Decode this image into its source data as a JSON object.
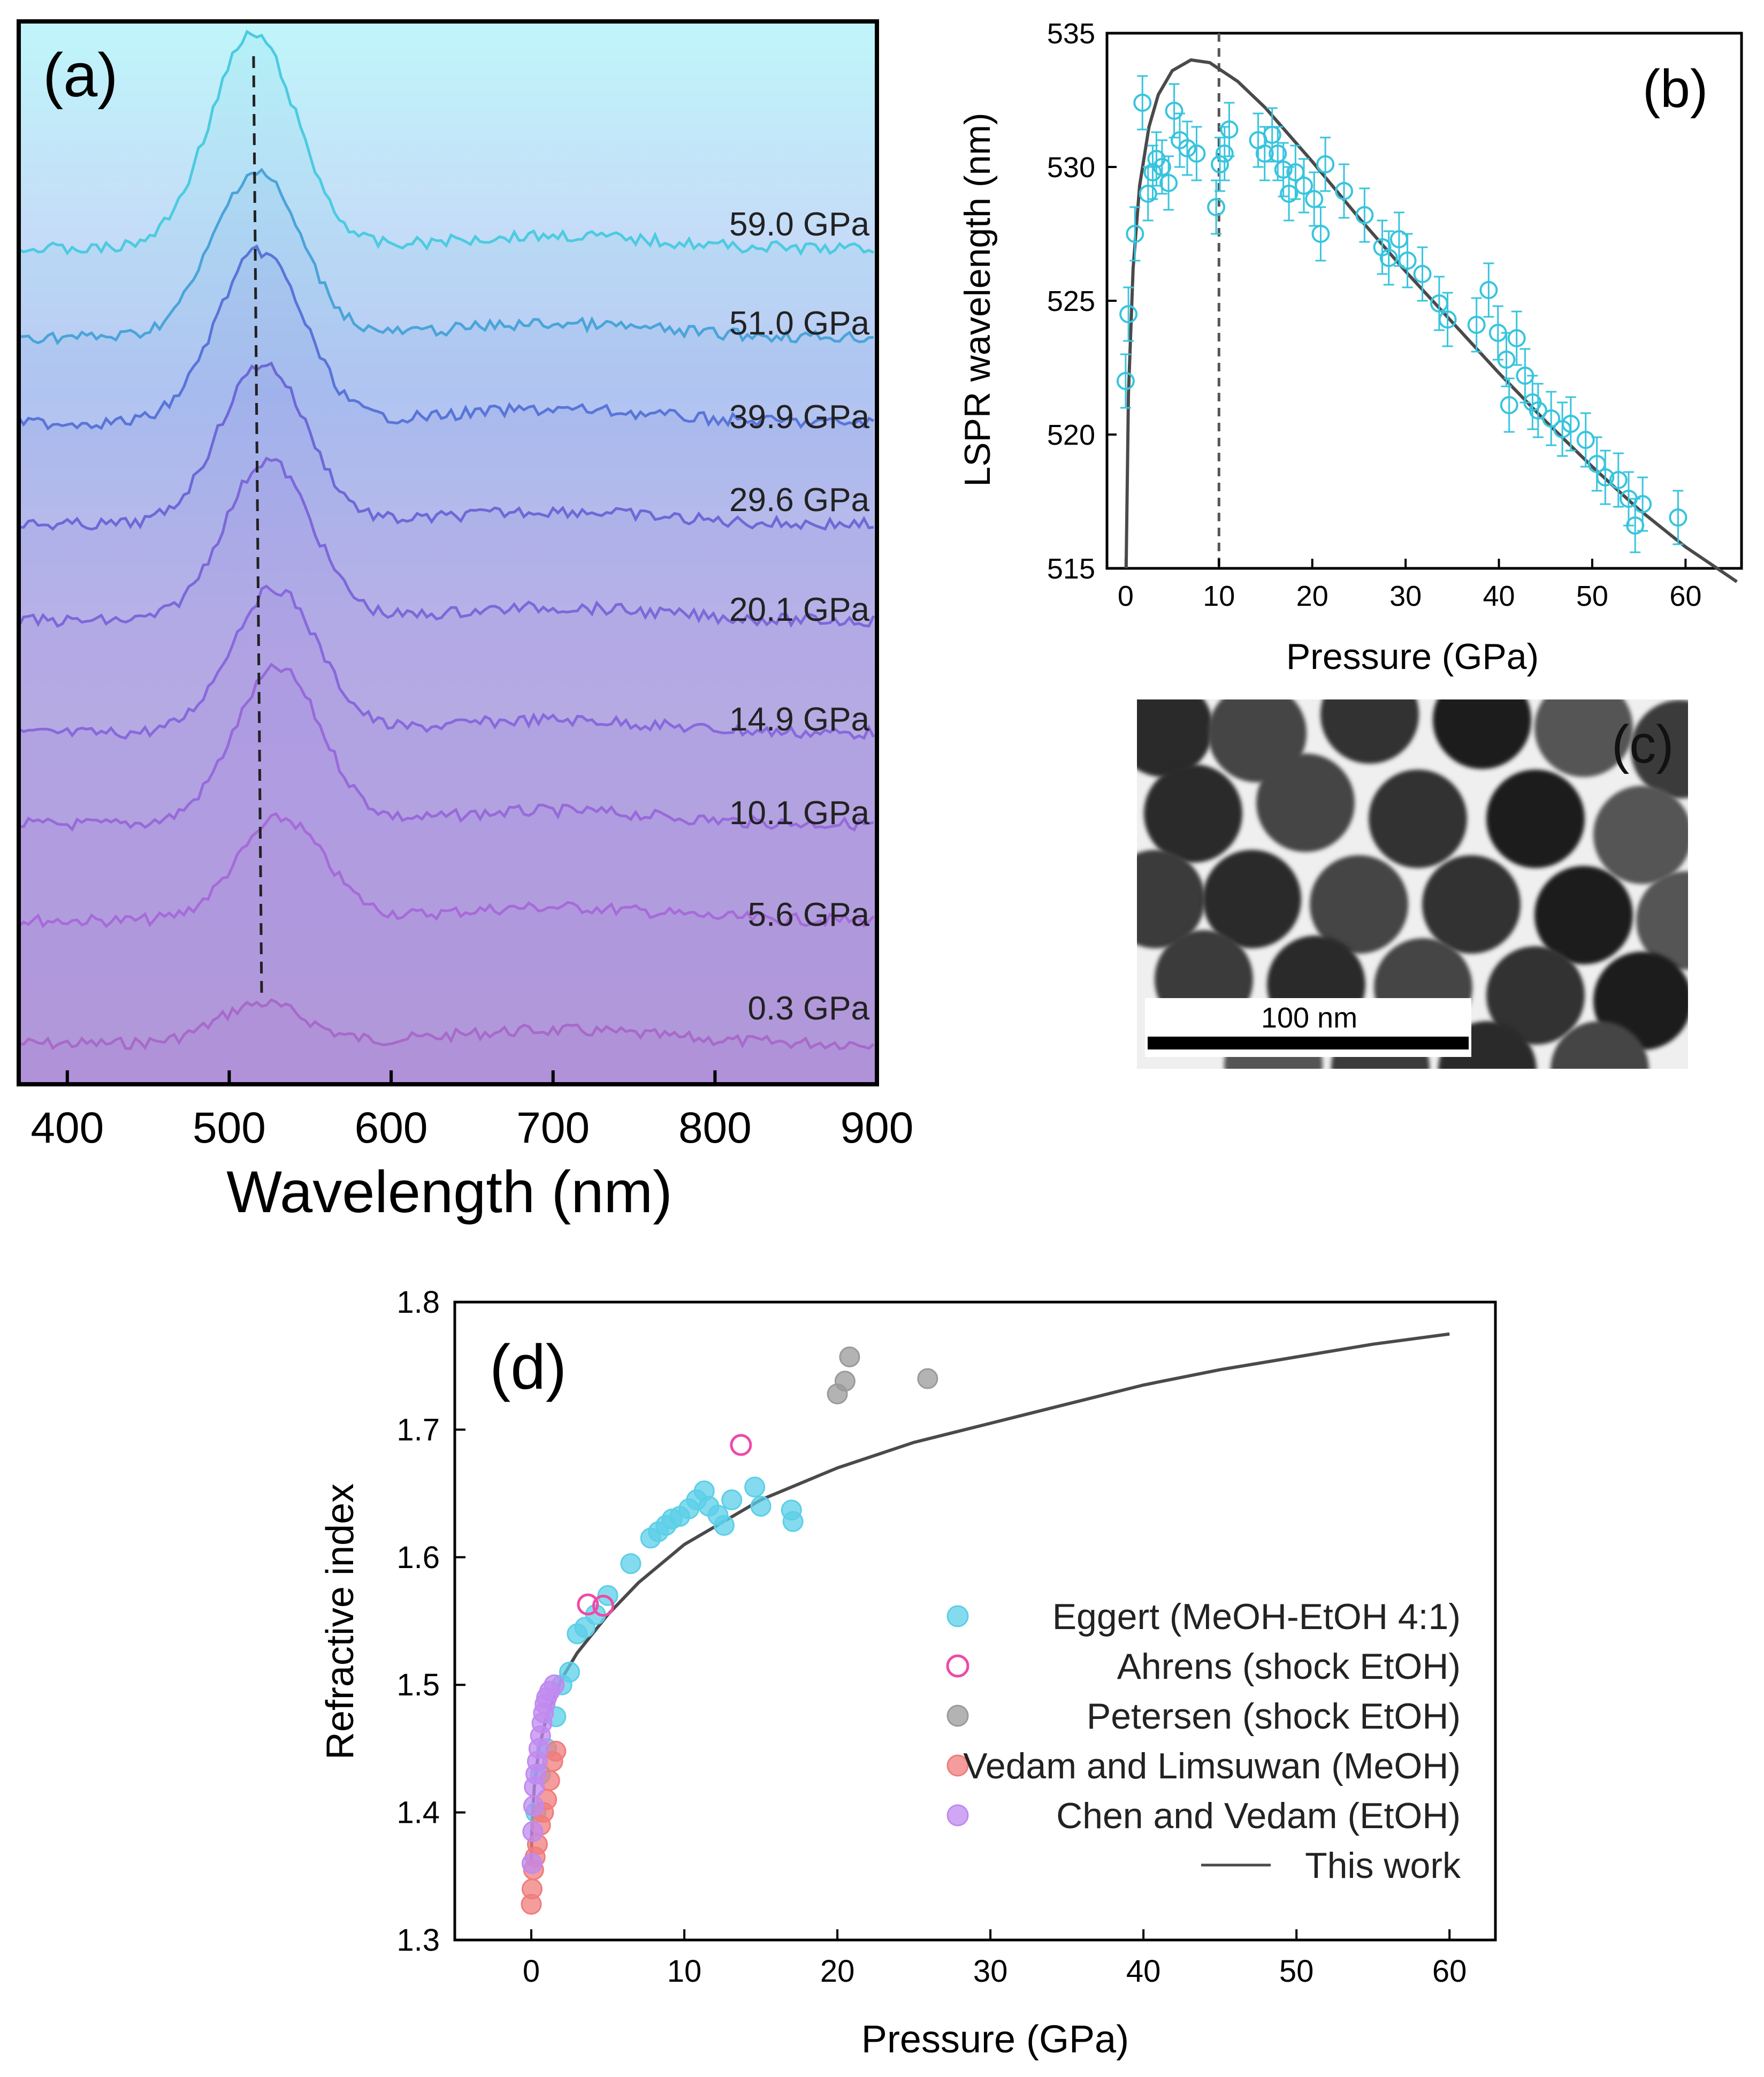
{
  "chart_data": [
    {
      "panel": "(a)",
      "type": "line",
      "xlabel": "Wavelength (nm)",
      "ylabel": "",
      "xlim": [
        370,
        900
      ],
      "xticks": [
        400,
        500,
        600,
        700,
        800,
        900
      ],
      "series": [
        {
          "name": "0.3 GPa",
          "color": "#e65bb8",
          "peak_nm": 520
        },
        {
          "name": "5.6 GPa",
          "color": "#e35ed6",
          "peak_nm": 532
        },
        {
          "name": "10.1 GPa",
          "color": "#c45cde",
          "peak_nm": 530
        },
        {
          "name": "14.9 GPa",
          "color": "#a656e0",
          "peak_nm": 528
        },
        {
          "name": "20.1 GPa",
          "color": "#9455da",
          "peak_nm": 524
        },
        {
          "name": "29.6 GPa",
          "color": "#7a55d6",
          "peak_nm": 521
        },
        {
          "name": "39.9 GPa",
          "color": "#5d66d8",
          "peak_nm": 519
        },
        {
          "name": "51.0 GPa",
          "color": "#4aa0d8",
          "peak_nm": 517
        },
        {
          "name": "59.0 GPa",
          "color": "#4ccbe0",
          "peak_nm": 515
        }
      ],
      "annotation": "dashed line through peak maxima"
    },
    {
      "panel": "(b)",
      "type": "scatter",
      "xlabel": "Pressure (GPa)",
      "ylabel": "LSPR wavelength (nm)",
      "xlim": [
        -2,
        66
      ],
      "ylim": [
        515,
        535
      ],
      "xticks": [
        0,
        10,
        20,
        30,
        40,
        50,
        60
      ],
      "yticks": [
        515,
        520,
        525,
        530,
        535
      ],
      "vline_x": 10,
      "points": [
        [
          0,
          522
        ],
        [
          0.3,
          524.5
        ],
        [
          1,
          527.5
        ],
        [
          1.8,
          532.4
        ],
        [
          2.4,
          529
        ],
        [
          2.9,
          529.8
        ],
        [
          3.3,
          530.3
        ],
        [
          3.9,
          530
        ],
        [
          4.6,
          529.4
        ],
        [
          5.2,
          532.1
        ],
        [
          5.8,
          531
        ],
        [
          6.6,
          530.7
        ],
        [
          7.6,
          530.5
        ],
        [
          9.7,
          528.5
        ],
        [
          10.1,
          530.1
        ],
        [
          10.6,
          530.5
        ],
        [
          11.1,
          531.4
        ],
        [
          14.2,
          531
        ],
        [
          14.9,
          530.5
        ],
        [
          15.7,
          531.2
        ],
        [
          16.3,
          530.5
        ],
        [
          16.9,
          529.9
        ],
        [
          17.5,
          529
        ],
        [
          18.2,
          529.8
        ],
        [
          19.1,
          529.3
        ],
        [
          20.2,
          528.8
        ],
        [
          20.9,
          527.5
        ],
        [
          21.4,
          530.1
        ],
        [
          23.4,
          529.1
        ],
        [
          25.6,
          528.2
        ],
        [
          27.5,
          527
        ],
        [
          28.2,
          526.6
        ],
        [
          29.3,
          527.3
        ],
        [
          30.2,
          526.5
        ],
        [
          31.8,
          526
        ],
        [
          33.6,
          524.9
        ],
        [
          34.5,
          524.3
        ],
        [
          37.6,
          524.1
        ],
        [
          38.9,
          525.4
        ],
        [
          39.9,
          523.8
        ],
        [
          40.8,
          522.8
        ],
        [
          41.1,
          521.1
        ],
        [
          41.9,
          523.6
        ],
        [
          42.8,
          522.2
        ],
        [
          43.6,
          521.2
        ],
        [
          44.2,
          520.9
        ],
        [
          45.6,
          520.6
        ],
        [
          46.8,
          520.2
        ],
        [
          47.7,
          520.4
        ],
        [
          49.3,
          519.8
        ],
        [
          50.5,
          518.9
        ],
        [
          51.4,
          518.4
        ],
        [
          52.8,
          518.3
        ],
        [
          53.9,
          517.6
        ],
        [
          54.6,
          516.6
        ],
        [
          55.4,
          517.4
        ],
        [
          59.2,
          516.9
        ]
      ],
      "y_error": 1.0,
      "fit_curve": [
        [
          0.05,
          515
        ],
        [
          0.3,
          521.5
        ],
        [
          0.8,
          526.2
        ],
        [
          1.5,
          529.3
        ],
        [
          2.5,
          531.5
        ],
        [
          3.5,
          532.7
        ],
        [
          5,
          533.6
        ],
        [
          7,
          534
        ],
        [
          9,
          533.9
        ],
        [
          12,
          533.2
        ],
        [
          15,
          532.2
        ],
        [
          20,
          530.2
        ],
        [
          25,
          528.1
        ],
        [
          30,
          526.1
        ],
        [
          35,
          524.2
        ],
        [
          40,
          522.3
        ],
        [
          45,
          520.5
        ],
        [
          50,
          518.8
        ],
        [
          55,
          517.2
        ],
        [
          60,
          515.8
        ],
        [
          65.5,
          514.5
        ]
      ]
    },
    {
      "panel": "(d)",
      "type": "scatter",
      "xlabel": "Pressure (GPa)",
      "ylabel": "Refractive index",
      "xlim": [
        -5,
        63
      ],
      "ylim": [
        1.3,
        1.8
      ],
      "xticks": [
        0,
        10,
        20,
        30,
        40,
        50,
        60
      ],
      "yticks": [
        1.3,
        1.4,
        1.5,
        1.6,
        1.7,
        1.8
      ],
      "series": [
        {
          "name": "Eggert (MeOH-EtOH 4:1)",
          "marker": "filled",
          "color": "#5ccfe8",
          "points": [
            [
              0.3,
              1.4
            ],
            [
              0.6,
              1.43
            ],
            [
              1.0,
              1.45
            ],
            [
              1.6,
              1.475
            ],
            [
              2.0,
              1.5
            ],
            [
              2.5,
              1.51
            ],
            [
              3.0,
              1.54
            ],
            [
              3.5,
              1.545
            ],
            [
              4.2,
              1.555
            ],
            [
              5.0,
              1.57
            ],
            [
              6.5,
              1.595
            ],
            [
              7.8,
              1.615
            ],
            [
              8.3,
              1.62
            ],
            [
              8.8,
              1.625
            ],
            [
              9.2,
              1.63
            ],
            [
              9.7,
              1.632
            ],
            [
              10.3,
              1.638
            ],
            [
              10.8,
              1.645
            ],
            [
              11.3,
              1.652
            ],
            [
              11.6,
              1.64
            ],
            [
              12.2,
              1.633
            ],
            [
              12.6,
              1.625
            ],
            [
              13.1,
              1.645
            ],
            [
              14.6,
              1.655
            ],
            [
              15.0,
              1.64
            ],
            [
              17.0,
              1.637
            ],
            [
              17.1,
              1.628
            ]
          ]
        },
        {
          "name": "Ahrens (shock EtOH)",
          "marker": "open",
          "color": "#ee4aa8",
          "points": [
            [
              3.7,
              1.563
            ],
            [
              4.7,
              1.562
            ],
            [
              13.7,
              1.688
            ]
          ]
        },
        {
          "name": "Petersen (shock EtOH)",
          "marker": "filled",
          "color": "#9a9a9a",
          "points": [
            [
              20.0,
              1.728
            ],
            [
              20.5,
              1.738
            ],
            [
              20.8,
              1.757
            ],
            [
              25.9,
              1.74
            ]
          ]
        },
        {
          "name": "Vedam and Limsuwan (MeOH)",
          "marker": "filled",
          "color": "#f07c7c",
          "points": [
            [
              0.0,
              1.328
            ],
            [
              0.05,
              1.34
            ],
            [
              0.15,
              1.355
            ],
            [
              0.25,
              1.365
            ],
            [
              0.4,
              1.375
            ],
            [
              0.6,
              1.39
            ],
            [
              0.8,
              1.4
            ],
            [
              1.0,
              1.41
            ],
            [
              1.2,
              1.425
            ],
            [
              1.4,
              1.44
            ],
            [
              1.6,
              1.448
            ]
          ]
        },
        {
          "name": "Chen and Vedam (EtOH)",
          "marker": "filled",
          "color": "#c08af0",
          "points": [
            [
              0.05,
              1.36
            ],
            [
              0.1,
              1.385
            ],
            [
              0.15,
              1.405
            ],
            [
              0.2,
              1.42
            ],
            [
              0.3,
              1.43
            ],
            [
              0.4,
              1.44
            ],
            [
              0.5,
              1.45
            ],
            [
              0.6,
              1.46
            ],
            [
              0.7,
              1.47
            ],
            [
              0.8,
              1.478
            ],
            [
              0.9,
              1.485
            ],
            [
              1.0,
              1.49
            ],
            [
              1.2,
              1.495
            ],
            [
              1.5,
              1.5
            ]
          ]
        }
      ],
      "fit_curve": {
        "name": "This work",
        "points": [
          [
            0.0,
            1.36
          ],
          [
            0.05,
            1.39
          ],
          [
            0.2,
            1.42
          ],
          [
            0.5,
            1.45
          ],
          [
            1,
            1.475
          ],
          [
            2,
            1.505
          ],
          [
            3,
            1.525
          ],
          [
            5,
            1.555
          ],
          [
            7,
            1.58
          ],
          [
            10,
            1.61
          ],
          [
            15,
            1.645
          ],
          [
            20,
            1.67
          ],
          [
            25,
            1.69
          ],
          [
            30,
            1.705
          ],
          [
            35,
            1.72
          ],
          [
            40,
            1.735
          ],
          [
            45,
            1.747
          ],
          [
            50,
            1.757
          ],
          [
            55,
            1.767
          ],
          [
            60,
            1.775
          ]
        ]
      }
    }
  ],
  "panel_c": {
    "label": "(c)",
    "scale_bar": "100 nm"
  }
}
